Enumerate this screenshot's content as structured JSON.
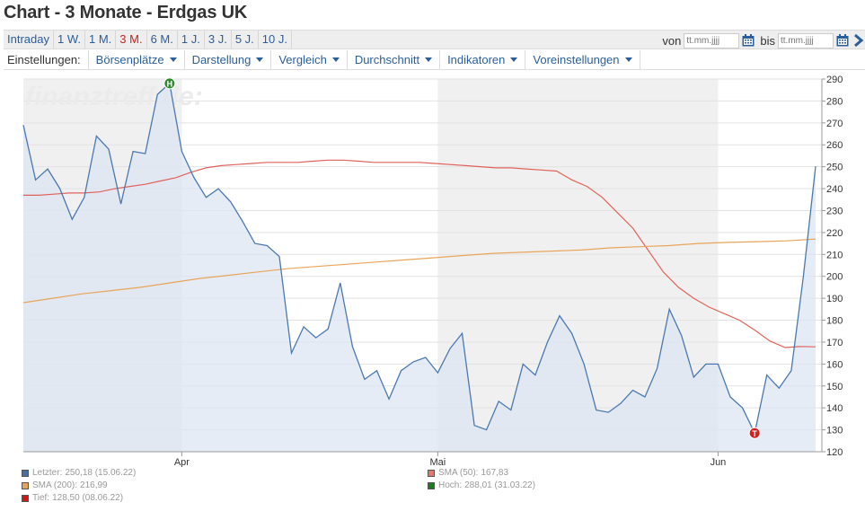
{
  "page": {
    "title": "Chart - 3 Monate - Erdgas UK"
  },
  "range_tabs": [
    {
      "label": "Intraday",
      "active": false
    },
    {
      "label": "1 W.",
      "active": false
    },
    {
      "label": "1 M.",
      "active": false
    },
    {
      "label": "3 M.",
      "active": true
    },
    {
      "label": "6 M.",
      "active": false
    },
    {
      "label": "1 J.",
      "active": false
    },
    {
      "label": "3 J.",
      "active": false
    },
    {
      "label": "5 J.",
      "active": false
    },
    {
      "label": "10 J.",
      "active": false
    }
  ],
  "date_range": {
    "from_label": "von",
    "from_placeholder": "tt.mm.jjjj",
    "to_label": "bis",
    "to_placeholder": "tt.mm.jjjj",
    "calendar_icon": "calendar-icon",
    "next_icon": "chevron-right-icon"
  },
  "settings": {
    "label": "Einstellungen:",
    "menus": [
      "Börsenplätze",
      "Darstellung",
      "Vergleich",
      "Durchschnitt",
      "Indikatoren",
      "Voreinstellungen"
    ]
  },
  "watermark": "finanztreff.de:",
  "colors": {
    "accent": "#2a5e9a",
    "active_tab": "#c0261f",
    "price_line": "#4a78b0",
    "price_fill": "#dce6f2",
    "sma50": "#e0625a",
    "sma200": "#e8a55a",
    "high_marker": "#2e8b2e",
    "low_marker": "#d42020",
    "weekend_band": "#f0f0f0"
  },
  "chart_data": {
    "type": "area",
    "ylim": [
      120,
      290
    ],
    "y_ticks": [
      120,
      130,
      140,
      150,
      160,
      170,
      180,
      190,
      200,
      210,
      220,
      230,
      240,
      250,
      260,
      270,
      280,
      290
    ],
    "x_tick_labels": [
      {
        "label": "Apr",
        "index": 13
      },
      {
        "label": "Mai",
        "index": 34
      },
      {
        "label": "Jun",
        "index": 57
      }
    ],
    "shaded_index_ranges": [
      [
        0,
        13
      ],
      [
        34,
        57
      ]
    ],
    "series": [
      {
        "name": "Letzter",
        "values": [
          269,
          244,
          249,
          240,
          226,
          236,
          264,
          258,
          233,
          257,
          256,
          283,
          288,
          257,
          245,
          236,
          240,
          234,
          225,
          215,
          214,
          209,
          165,
          177,
          172,
          176,
          197,
          168,
          153,
          157,
          144,
          157,
          161,
          163,
          156,
          167,
          174,
          132,
          130,
          143,
          139,
          160,
          155,
          170,
          182,
          174,
          160,
          139,
          138,
          142,
          148,
          145,
          158,
          185,
          173,
          154,
          160,
          160,
          145,
          140,
          128.5,
          155,
          149,
          157,
          200,
          250.18
        ]
      },
      {
        "name": "SMA (50)",
        "values": [
          237,
          237,
          237.5,
          238,
          238,
          238.5,
          240,
          241,
          242,
          243.5,
          245,
          247.5,
          249.5,
          250.5,
          251,
          251.5,
          252,
          252,
          252,
          252.5,
          253,
          253,
          252.5,
          252,
          252,
          252,
          252,
          251.5,
          251,
          250.5,
          250,
          249.5,
          249.5,
          249,
          248.5,
          248,
          244,
          241,
          236,
          229,
          222,
          212,
          202,
          195,
          190,
          186,
          183,
          180,
          175.5,
          170.5,
          167.5,
          168,
          167.83
        ]
      },
      {
        "name": "SMA (200)",
        "values": [
          188,
          190,
          192,
          193.5,
          195,
          197,
          199,
          200.5,
          202,
          203.5,
          204.5,
          205.5,
          206.5,
          207.5,
          208.5,
          209.5,
          210.5,
          211,
          211.5,
          212,
          213,
          213.5,
          214,
          215,
          215.5,
          215.8,
          216.2,
          216.99
        ]
      }
    ],
    "legend": [
      {
        "label": "Letzter:",
        "value": "250,18 (15.06.22)",
        "color": "#4a6fa5",
        "position": "row1-left"
      },
      {
        "label": "SMA (50):",
        "value": "167,83",
        "color": "#e07a70",
        "position": "row1-right"
      },
      {
        "label": "SMA (200):",
        "value": "216,99",
        "color": "#e8a55a",
        "position": "row2-left"
      },
      {
        "label": "Hoch:",
        "value": "288,01 (31.03.22)",
        "color": "#1f7a1f",
        "position": "row2-right"
      },
      {
        "label": "Tief:",
        "value": "128,50 (08.06.22)",
        "color": "#cc1a1a",
        "position": "row3-left"
      }
    ],
    "markers": [
      {
        "label": "H",
        "series": "Letzter",
        "index": 12,
        "value": 288.01
      },
      {
        "label": "T",
        "series": "Letzter",
        "index": 60,
        "value": 128.5
      }
    ]
  }
}
